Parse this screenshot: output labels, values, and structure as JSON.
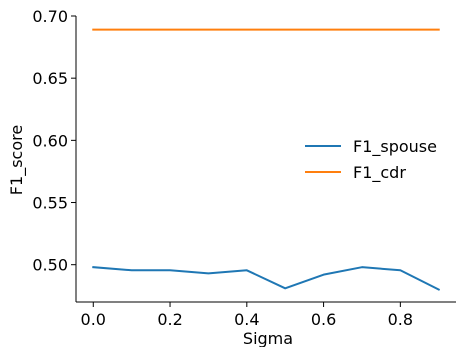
{
  "chart_data": {
    "type": "line",
    "title": "",
    "xlabel": "Sigma",
    "ylabel": "F1_score",
    "xlim": [
      -0.045,
      0.945
    ],
    "ylim": [
      0.47,
      0.7
    ],
    "xticks": [
      0.0,
      0.2,
      0.4,
      0.6,
      0.8
    ],
    "xtick_labels": [
      "0.0",
      "0.2",
      "0.4",
      "0.6",
      "0.8"
    ],
    "yticks": [
      0.5,
      0.55,
      0.6,
      0.65,
      0.7
    ],
    "ytick_labels": [
      "0.50",
      "0.55",
      "0.60",
      "0.65",
      "0.70"
    ],
    "grid": false,
    "legend_position": "center-right",
    "x": [
      0.0,
      0.1,
      0.2,
      0.3,
      0.4,
      0.5,
      0.6,
      0.7,
      0.8,
      0.9
    ],
    "series": [
      {
        "name": "F1_spouse",
        "color": "#1f77b4",
        "values": [
          0.498,
          0.4955,
          0.4955,
          0.493,
          0.4955,
          0.481,
          0.492,
          0.498,
          0.4955,
          0.48
        ]
      },
      {
        "name": "F1_cdr",
        "color": "#ff7f0e",
        "values": [
          0.689,
          0.689,
          0.689,
          0.689,
          0.689,
          0.689,
          0.689,
          0.689,
          0.689,
          0.689
        ]
      }
    ]
  }
}
